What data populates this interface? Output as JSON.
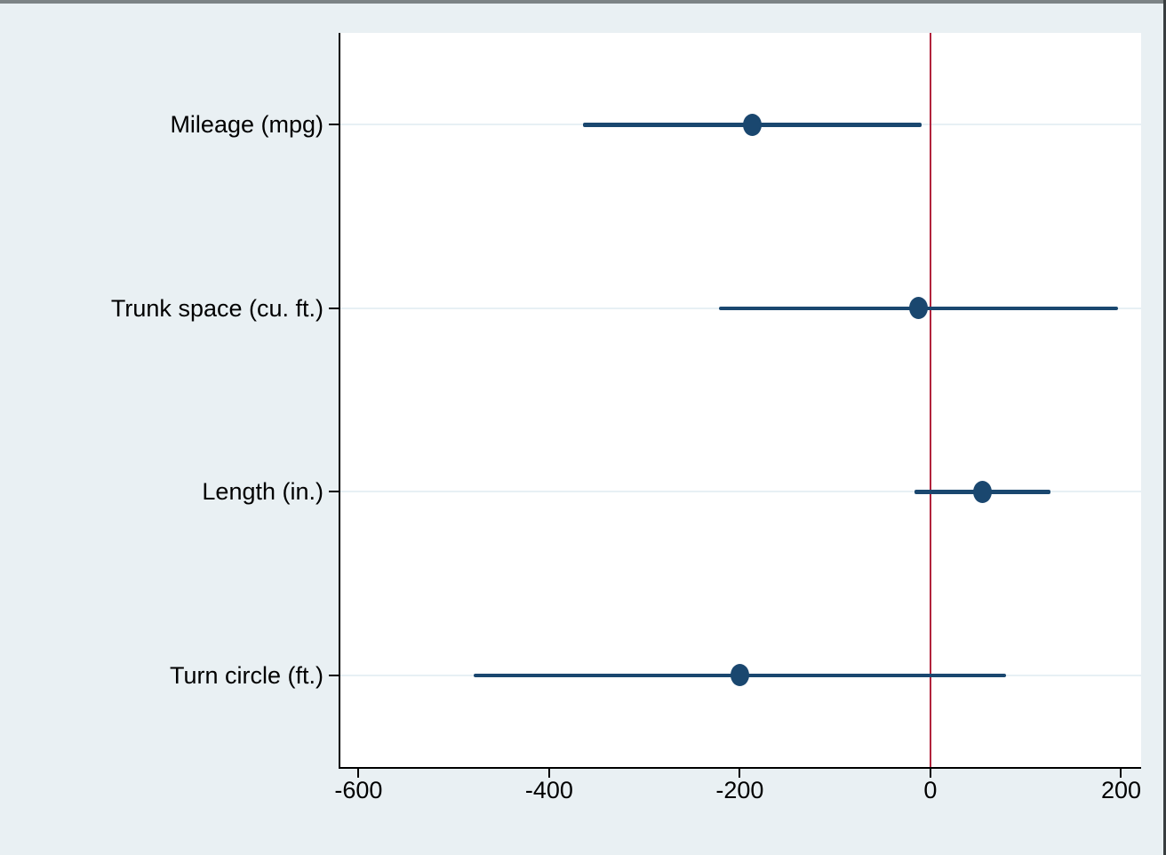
{
  "window": {
    "background_color": "#e9f0f3",
    "top_border_color": "#7c8385",
    "right_border_color": "#383d3f",
    "plot_border_color": "#000000"
  },
  "chart_data": {
    "type": "scatter",
    "subtype": "coefficient-plot-with-95ci",
    "title": "",
    "xlabel": "",
    "ylabel": "",
    "categories": [
      "Mileage (mpg)",
      "Trunk space (cu. ft.)",
      "Length (in.)",
      "Turn circle (ft.)"
    ],
    "series": [
      {
        "name": "point-estimate-with-95ci",
        "estimates": [
          -186.8,
          -12.7,
          54.6,
          -200.3
        ],
        "ci_low": [
          -364.4,
          -221.9,
          -17.1,
          -479.5
        ],
        "ci_high": [
          -9.3,
          196.5,
          126.2,
          78.9
        ]
      }
    ],
    "x_ticks": [
      -600,
      -400,
      -200,
      0,
      200
    ],
    "x_tick_labels": [
      "-600",
      "-400",
      "-200",
      "0",
      "200"
    ],
    "xlim": [
      -619,
      221
    ],
    "refline_x": 0,
    "refline_color": "#b1233c",
    "marker_color": "#1a476f",
    "ci_color": "#1a476f",
    "gridline_color": "#e7f0f4",
    "plot_background": "#ffffff",
    "grid": "horizontal-on",
    "legend": "none"
  }
}
